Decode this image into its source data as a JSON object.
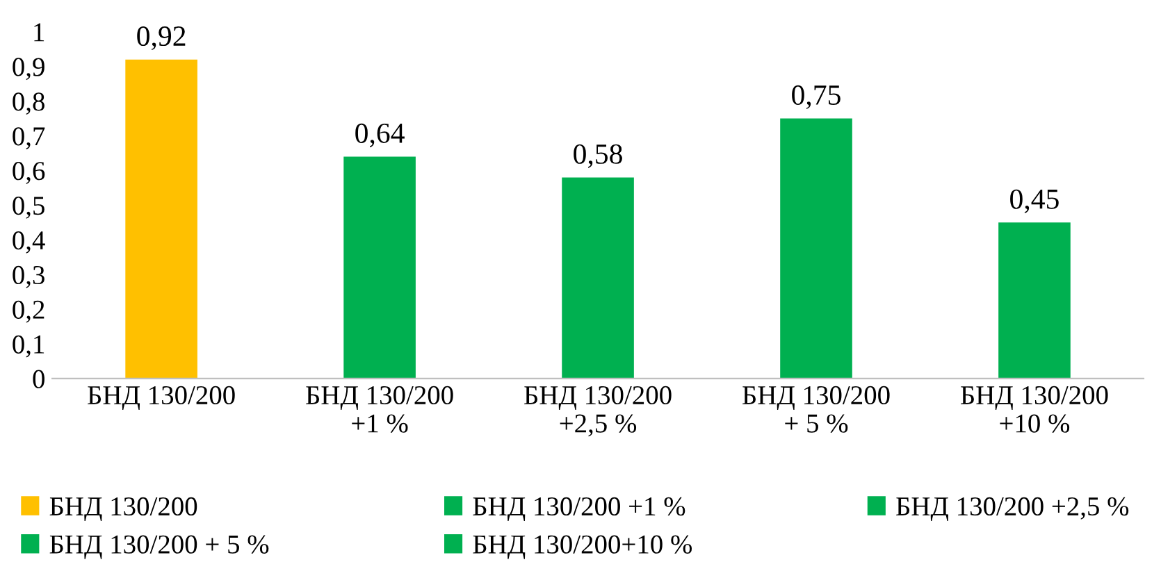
{
  "chart_data": {
    "type": "bar",
    "categories": [
      "БНД 130/200",
      "БНД 130/200\n+1 %",
      "БНД 130/200\n+2,5 %",
      "БНД 130/200\n+ 5 %",
      "БНД 130/200\n+10 %"
    ],
    "series": [
      {
        "name": "БНД 130/200",
        "color": "#ffc000",
        "values": [
          0.92,
          null,
          null,
          null,
          null
        ],
        "value_labels": [
          "0,92",
          null,
          null,
          null,
          null
        ]
      },
      {
        "name": "БНД 130/200 +1 %",
        "color": "#00b050",
        "values": [
          null,
          0.64,
          null,
          null,
          null
        ],
        "value_labels": [
          null,
          "0,64",
          null,
          null,
          null
        ]
      },
      {
        "name": "БНД 130/200 +2,5 %",
        "color": "#00b050",
        "values": [
          null,
          null,
          0.58,
          null,
          null
        ],
        "value_labels": [
          null,
          null,
          "0,58",
          null,
          null
        ]
      },
      {
        "name": "БНД 130/200 + 5 %",
        "color": "#00b050",
        "values": [
          null,
          null,
          null,
          0.75,
          null
        ],
        "value_labels": [
          null,
          null,
          null,
          "0,75",
          null
        ]
      },
      {
        "name": "БНД 130/200+10 %",
        "color": "#00b050",
        "values": [
          null,
          null,
          null,
          null,
          0.45
        ],
        "value_labels": [
          null,
          null,
          null,
          null,
          "0,45"
        ]
      }
    ],
    "ylim": [
      0,
      1
    ],
    "yticks": [
      0,
      {
        "value": 0.1,
        "label": "0,1"
      },
      {
        "value": 0.2,
        "label": "0,2"
      },
      {
        "value": 0.3,
        "label": "0,3"
      },
      {
        "value": 0.4,
        "label": "0,4"
      },
      {
        "value": 0.5,
        "label": "0,5"
      },
      {
        "value": 0.6,
        "label": "0,6"
      },
      {
        "value": 0.7,
        "label": "0,7"
      },
      {
        "value": 0.8,
        "label": "0,8"
      },
      {
        "value": 0.9,
        "label": "0,9"
      },
      1
    ],
    "grid": false,
    "legend": "bottom"
  }
}
